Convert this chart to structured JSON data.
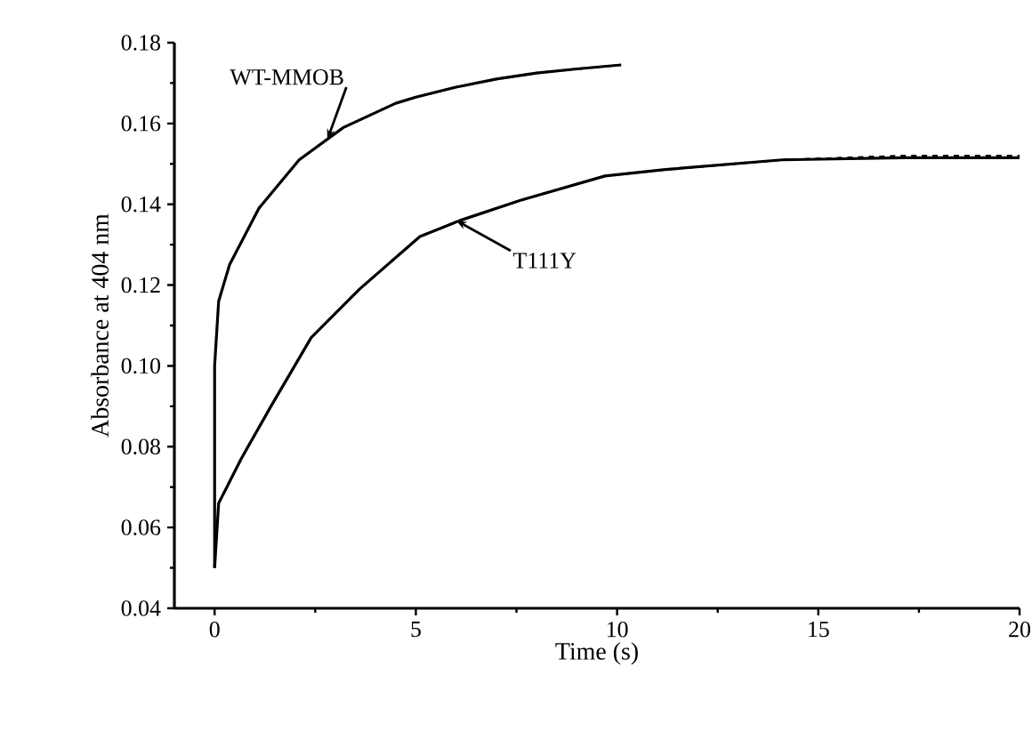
{
  "chart_data": {
    "type": "line",
    "xlabel": "Time (s)",
    "ylabel": "Absorbance at 404 nm",
    "xlim": [
      -1,
      20
    ],
    "ylim": [
      0.04,
      0.18
    ],
    "xticks": [
      0,
      5,
      10,
      15,
      20
    ],
    "yticks": [
      {
        "value": 0.04,
        "label": "0.04"
      },
      {
        "value": 0.06,
        "label": "0.06"
      },
      {
        "value": 0.08,
        "label": "0.08"
      },
      {
        "value": 0.1,
        "label": "0.10"
      },
      {
        "value": 0.12,
        "label": "0.12"
      },
      {
        "value": 0.14,
        "label": "0.14"
      },
      {
        "value": 0.16,
        "label": "0.16"
      },
      {
        "value": 0.18,
        "label": "0.18"
      }
    ],
    "marker": "none",
    "series": [
      {
        "color": "#000000",
        "line_style": "solid",
        "x": [
          0,
          0,
          0.1,
          0.37,
          1.1,
          2.1,
          3.2,
          4.5,
          5,
          6,
          7,
          8,
          9,
          10.1
        ],
        "values": [
          0.05,
          0.1,
          0.116,
          0.125,
          0.139,
          0.151,
          0.159,
          0.165,
          0.1665,
          0.169,
          0.171,
          0.1725,
          0.1735,
          0.1745
        ]
      },
      {
        "color": "#000000",
        "line_style": "dotted",
        "x": [
          0.1,
          0.37,
          1.1,
          2.1,
          3.2,
          4.5,
          5,
          6,
          7,
          8,
          9,
          10.1
        ],
        "values": [
          0.116,
          0.125,
          0.139,
          0.151,
          0.159,
          0.165,
          0.1665,
          0.169,
          0.171,
          0.1725,
          0.1735,
          0.1745
        ]
      },
      {
        "color": "#000000",
        "line_style": "solid",
        "x": [
          0,
          0.1,
          0.66,
          1.4,
          2.4,
          3.6,
          5.1,
          6.1,
          7.6,
          9.7,
          11.2,
          14.1,
          17.1,
          20
        ],
        "values": [
          0.05,
          0.066,
          0.077,
          0.09,
          0.107,
          0.119,
          0.132,
          0.136,
          0.141,
          0.147,
          0.1486,
          0.151,
          0.1515,
          0.1515
        ]
      },
      {
        "color": "#000000",
        "line_style": "dashed",
        "x": [
          0.1,
          0.66,
          1.4,
          2.4,
          3.6,
          5.1,
          6.1,
          7.6,
          9.7,
          11.2,
          14.1,
          17.1,
          20
        ],
        "values": [
          0.066,
          0.077,
          0.09,
          0.107,
          0.119,
          0.132,
          0.136,
          0.141,
          0.147,
          0.1486,
          0.151,
          0.152,
          0.152
        ]
      }
    ],
    "annotations": [
      {
        "text": "WT-MMOB",
        "x": 2.8,
        "y": 0.156
      },
      {
        "text": "T111Y",
        "x": 6,
        "y": 0.136
      }
    ]
  }
}
